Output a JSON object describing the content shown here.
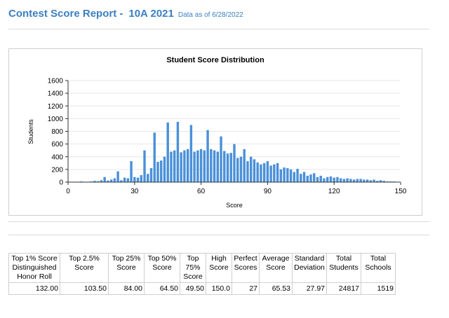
{
  "header": {
    "title": "Contest Score Report -",
    "contest": "10A 2021",
    "as_of": "Data as of 6/28/2022"
  },
  "chart_data": {
    "type": "bar",
    "title": "Student Score Distribution",
    "xlabel": "Score",
    "ylabel": "Students",
    "xlim": [
      0,
      150
    ],
    "ylim": [
      0,
      1600
    ],
    "xticks": [
      0,
      30,
      60,
      90,
      120,
      150
    ],
    "yticks": [
      0,
      200,
      400,
      600,
      800,
      1000,
      1200,
      1400,
      1600
    ],
    "bar_color": "#4a90d9",
    "x": [
      6,
      10.5,
      12,
      13.5,
      15,
      16.5,
      18,
      19.5,
      21,
      22.5,
      24,
      25.5,
      27,
      28.5,
      30,
      31.5,
      33,
      34.5,
      36,
      37.5,
      39,
      40.5,
      42,
      43.5,
      45,
      46.5,
      48,
      49.5,
      51,
      52.5,
      54,
      55.5,
      57,
      58.5,
      60,
      61.5,
      63,
      64.5,
      66,
      67.5,
      69,
      70.5,
      72,
      73.5,
      75,
      76.5,
      78,
      79.5,
      81,
      82.5,
      84,
      85.5,
      87,
      88.5,
      90,
      91.5,
      93,
      94.5,
      96,
      97.5,
      99,
      100.5,
      102,
      103.5,
      105,
      106.5,
      108,
      109.5,
      111,
      112.5,
      114,
      115.5,
      117,
      118.5,
      120,
      121.5,
      123,
      124.5,
      126,
      127.5,
      129,
      130.5,
      132,
      133.5,
      135,
      136.5,
      138,
      139.5,
      141,
      142.5,
      144,
      145.5,
      147
    ],
    "values": [
      10,
      10,
      20,
      15,
      30,
      80,
      25,
      40,
      60,
      170,
      30,
      70,
      60,
      330,
      80,
      70,
      110,
      500,
      130,
      220,
      780,
      320,
      340,
      400,
      940,
      480,
      500,
      950,
      470,
      500,
      520,
      900,
      480,
      500,
      520,
      500,
      820,
      520,
      500,
      480,
      720,
      490,
      450,
      460,
      600,
      380,
      400,
      520,
      330,
      400,
      360,
      310,
      280,
      300,
      330,
      260,
      280,
      300,
      200,
      230,
      220,
      200,
      160,
      210,
      130,
      160,
      100,
      120,
      140,
      80,
      100,
      60,
      80,
      90,
      70,
      80,
      60,
      50,
      60,
      50,
      40,
      50,
      50,
      40,
      40,
      30,
      40,
      20,
      30,
      20,
      10,
      10,
      10
    ]
  },
  "table": {
    "headers": [
      "Top 1% Score Distinguished Honor Roll",
      "Top 2.5% Score",
      "Top 25% Score",
      "Top 50% Score",
      "Top 75% Score",
      "High Score",
      "Perfect Scores",
      "Average Score",
      "Standard Deviation",
      "Total Students",
      "Total Schools"
    ],
    "values": [
      "132.00",
      "103.50",
      "84.00",
      "64.50",
      "49.50",
      "150.0",
      "27",
      "65.53",
      "27.97",
      "24817",
      "1519"
    ]
  }
}
